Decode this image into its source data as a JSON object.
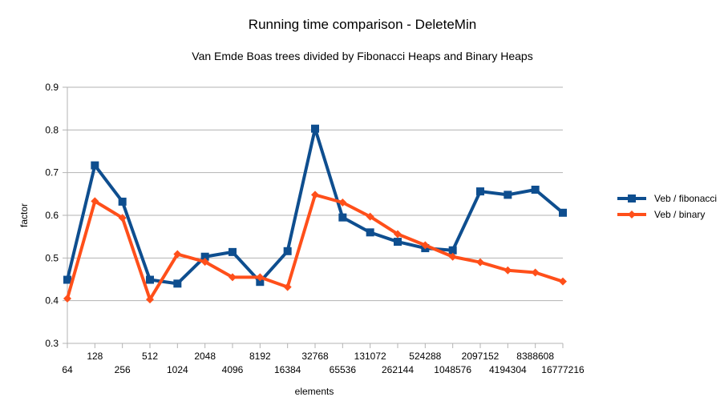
{
  "chart_data": {
    "type": "line",
    "title": "Running time comparison - DeleteMin",
    "subtitle": "Van Emde Boas trees divided by Fibonacci Heaps and Binary Heaps",
    "xlabel": "elements",
    "ylabel": "factor",
    "ylim": [
      0.3,
      0.9
    ],
    "yticks": [
      "0.3",
      "0.4",
      "0.5",
      "0.6",
      "0.7",
      "0.8",
      "0.9"
    ],
    "grid": true,
    "legend_position": "right",
    "categories": [
      "64",
      "128",
      "256",
      "512",
      "1024",
      "2048",
      "4096",
      "8192",
      "16384",
      "32768",
      "65536",
      "131072",
      "262144",
      "524288",
      "1048576",
      "2097152",
      "4194304",
      "8388608",
      "16777216"
    ],
    "series": [
      {
        "name": "Veb / fibonacci",
        "color": "#0e4e8f",
        "marker": "square",
        "values": [
          0.449,
          0.717,
          0.632,
          0.449,
          0.44,
          0.503,
          0.514,
          0.444,
          0.516,
          0.803,
          0.595,
          0.56,
          0.538,
          0.523,
          0.518,
          0.656,
          0.648,
          0.66,
          0.606
        ]
      },
      {
        "name": "Veb / binary",
        "color": "#ff4f1a",
        "marker": "diamond",
        "values": [
          0.405,
          0.633,
          0.594,
          0.403,
          0.509,
          0.491,
          0.455,
          0.455,
          0.432,
          0.648,
          0.63,
          0.597,
          0.556,
          0.53,
          0.503,
          0.49,
          0.471,
          0.466,
          0.445
        ]
      }
    ]
  }
}
